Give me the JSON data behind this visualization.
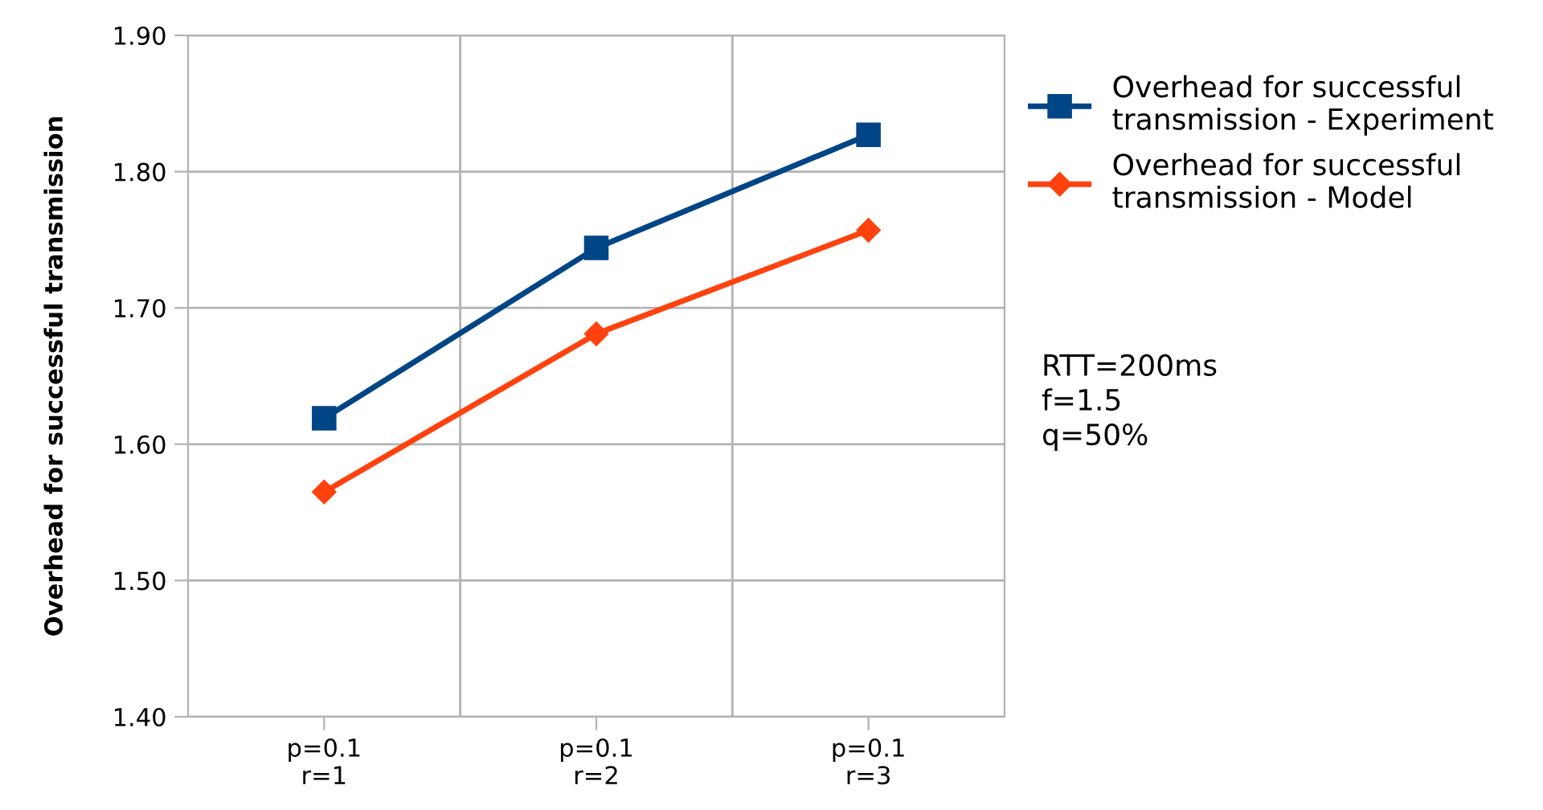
{
  "chart_data": {
    "type": "line",
    "ylabel": "Overhead for successful transmission",
    "categories": [
      "p=0.1\nr=1",
      "p=0.1\nr=2",
      "p=0.1\nr=3"
    ],
    "series": [
      {
        "name": "Overhead for successful\ntransmission - Experiment",
        "color": "#004586",
        "marker": "square",
        "values": [
          1.619,
          1.744,
          1.827
        ]
      },
      {
        "name": "Overhead for successful\ntransmission - Model",
        "color": "#ff420e",
        "marker": "diamond",
        "values": [
          1.565,
          1.681,
          1.757
        ]
      }
    ],
    "ylim": [
      1.4,
      1.9
    ],
    "yticks": [
      {
        "value": 1.4,
        "label": "1.40"
      },
      {
        "value": 1.5,
        "label": "1.50"
      },
      {
        "value": 1.6,
        "label": "1.60"
      },
      {
        "value": 1.7,
        "label": "1.70"
      },
      {
        "value": 1.8,
        "label": "1.80"
      },
      {
        "value": 1.9,
        "label": "1.90"
      }
    ],
    "grid": true,
    "legend": "right",
    "line_style": "solid",
    "annotations": [
      "RTT=200ms\nf=1.5\nq=50%"
    ]
  }
}
